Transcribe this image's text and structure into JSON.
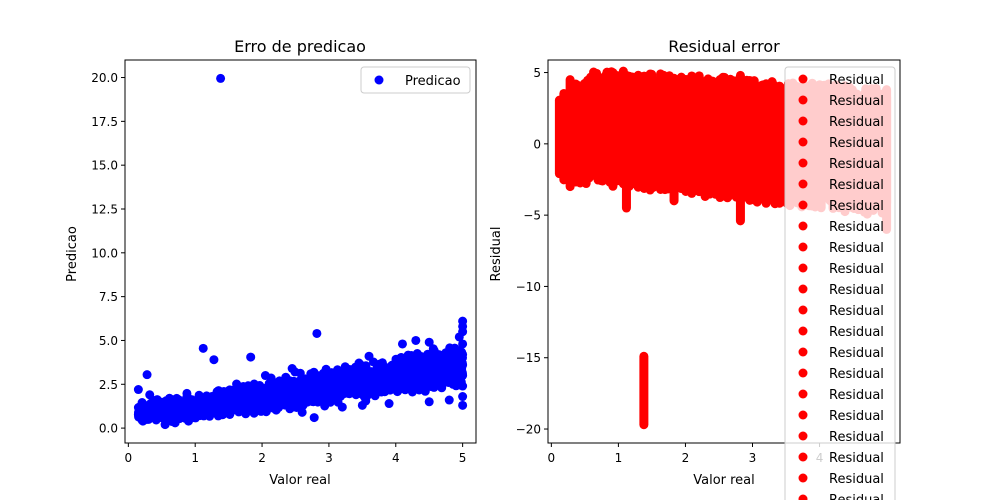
{
  "chart_data": [
    {
      "type": "scatter",
      "title": "Erro de predicao",
      "xlabel": "Valor real",
      "ylabel": "Predicao",
      "xlim": [
        -0.05,
        5.2
      ],
      "ylim": [
        -0.85,
        21.0
      ],
      "xticks": [
        "0",
        "1",
        "2",
        "3",
        "4",
        "5"
      ],
      "xtick_values": [
        0,
        1,
        2,
        3,
        4,
        5
      ],
      "yticks": [
        "0.0",
        "2.5",
        "5.0",
        "7.5",
        "10.0",
        "12.5",
        "15.0",
        "17.5",
        "20.0"
      ],
      "ytick_values": [
        0,
        2.5,
        5,
        7.5,
        10,
        12.5,
        15,
        17.5,
        20
      ],
      "grid": false,
      "legend": {
        "placement": "top-right",
        "entries": [
          "Predicao"
        ]
      },
      "series": [
        {
          "name": "Predicao",
          "color": "#0000ff",
          "trend": {
            "x": [
              0.15,
              1,
              2,
              3,
              4,
              5
            ],
            "y_center": [
              0.9,
              1.2,
              1.8,
              2.4,
              3.0,
              3.5
            ],
            "band": [
              0.6,
              0.9,
              1.1,
              1.2,
              1.3,
              1.5
            ]
          },
          "points": [
            {
              "x": 1.38,
              "y": 19.95
            },
            {
              "x": 2.82,
              "y": 5.4
            },
            {
              "x": 1.12,
              "y": 4.55
            },
            {
              "x": 1.28,
              "y": 3.9
            },
            {
              "x": 1.83,
              "y": 4.05
            },
            {
              "x": 0.28,
              "y": 3.05
            },
            {
              "x": 0.15,
              "y": 2.2
            },
            {
              "x": 0.32,
              "y": 1.9
            },
            {
              "x": 2.05,
              "y": 3.0
            },
            {
              "x": 2.45,
              "y": 3.4
            },
            {
              "x": 2.78,
              "y": 0.6
            },
            {
              "x": 4.5,
              "y": 4.9
            },
            {
              "x": 4.95,
              "y": 5.2
            },
            {
              "x": 5.0,
              "y": 6.1
            },
            {
              "x": 5.0,
              "y": 5.8
            },
            {
              "x": 5.0,
              "y": 5.5
            },
            {
              "x": 5.0,
              "y": 4.8
            },
            {
              "x": 5.0,
              "y": 4.2
            },
            {
              "x": 5.0,
              "y": 3.6
            },
            {
              "x": 5.0,
              "y": 3.0
            },
            {
              "x": 5.0,
              "y": 2.4
            },
            {
              "x": 5.0,
              "y": 1.8
            },
            {
              "x": 5.0,
              "y": 1.3
            },
            {
              "x": 4.5,
              "y": 1.5
            },
            {
              "x": 4.8,
              "y": 1.6
            },
            {
              "x": 3.9,
              "y": 1.4
            },
            {
              "x": 3.5,
              "y": 1.3
            },
            {
              "x": 3.2,
              "y": 1.2
            },
            {
              "x": 2.6,
              "y": 0.9
            },
            {
              "x": 3.6,
              "y": 4.1
            },
            {
              "x": 4.1,
              "y": 4.8
            },
            {
              "x": 4.3,
              "y": 5.0
            },
            {
              "x": 0.55,
              "y": 0.2
            },
            {
              "x": 0.7,
              "y": 0.3
            },
            {
              "x": 0.9,
              "y": 0.4
            },
            {
              "x": 0.25,
              "y": 0.6
            },
            {
              "x": 0.25,
              "y": 1.3
            }
          ]
        }
      ]
    },
    {
      "type": "scatter",
      "title": "Residual error",
      "xlabel": "Valor real",
      "ylabel": "Residual",
      "xlim": [
        -0.05,
        5.2
      ],
      "ylim": [
        -20.98,
        5.88
      ],
      "xticks": [
        "0",
        "1",
        "2",
        "3",
        "4"
      ],
      "xtick_values": [
        0,
        1,
        2,
        3,
        4
      ],
      "yticks": [
        "5",
        "0",
        "−5",
        "−10",
        "−15",
        "−20"
      ],
      "ytick_values": [
        5,
        0,
        -5,
        -10,
        -15,
        -20
      ],
      "grid": false,
      "legend": {
        "placement": "top-right",
        "entries": [
          "Residual",
          "Residual",
          "Residual",
          "Residual",
          "Residual",
          "Residual",
          "Residual",
          "Residual",
          "Residual",
          "Residual",
          "Residual",
          "Residual",
          "Residual",
          "Residual",
          "Residual",
          "Residual",
          "Residual",
          "Residual",
          "Residual",
          "Residual",
          "Residual"
        ]
      },
      "series": [
        {
          "name": "Residual",
          "color": "#ff0000",
          "band": {
            "x_start": 0.12,
            "x_end": 5.0,
            "y_top_start": 2.9,
            "y_top_peak": 4.8,
            "y_top_end": 3.5,
            "y_bottom_start": -2.0,
            "y_bottom_end": -4.5
          },
          "spikes": [
            {
              "x": 0.28,
              "y_min": -3.0,
              "y_max": 4.5
            },
            {
              "x": 1.12,
              "y_min": -4.5,
              "y_max": 4.8
            },
            {
              "x": 1.38,
              "y_min": -19.7,
              "y_max": -14.9
            },
            {
              "x": 1.83,
              "y_min": -4.0,
              "y_max": 4.6
            },
            {
              "x": 2.82,
              "y_min": -5.4,
              "y_max": 4.8
            },
            {
              "x": 5.0,
              "y_min": -6.0,
              "y_max": 3.8
            }
          ]
        }
      ]
    }
  ]
}
